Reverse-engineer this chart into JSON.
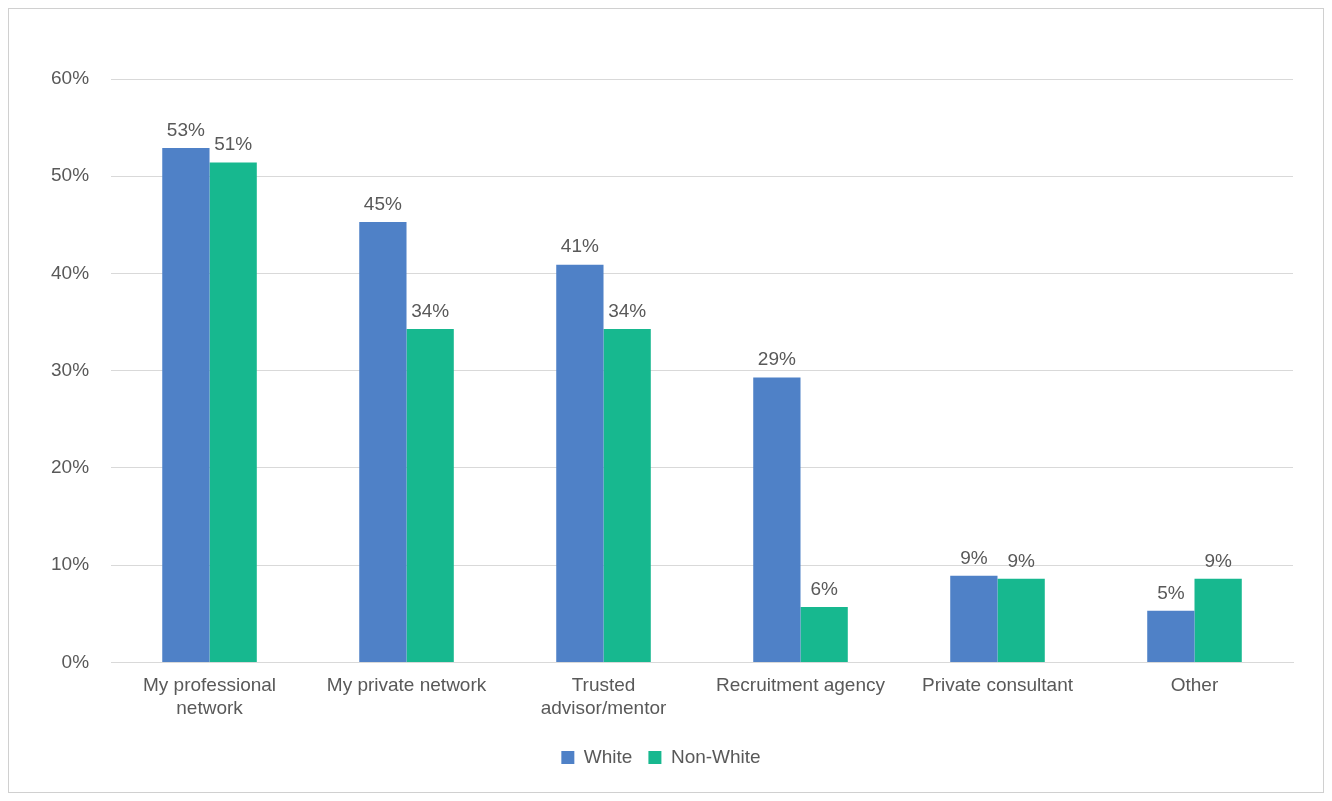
{
  "chart_data": {
    "type": "bar",
    "categories": [
      "My professional network",
      "My private network",
      "Trusted advisor/mentor",
      "Recruitment agency",
      "Private consultant",
      "Other"
    ],
    "series": [
      {
        "name": "White",
        "color": "#4f81c7",
        "values": [
          52.9,
          45.3,
          40.9,
          29.3,
          8.9,
          5.3
        ],
        "value_labels": [
          "53%",
          "45%",
          "41%",
          "29%",
          "9%",
          "5%"
        ]
      },
      {
        "name": "Non-White",
        "color": "#17b88f",
        "values": [
          51.4,
          34.3,
          34.3,
          5.7,
          8.6,
          8.6
        ],
        "value_labels": [
          "51%",
          "34%",
          "34%",
          "6%",
          "9%",
          "9%"
        ]
      }
    ],
    "ylim": [
      0,
      60
    ],
    "yticks": [
      {
        "value": 0,
        "label": "0%"
      },
      {
        "value": 10,
        "label": "10%"
      },
      {
        "value": 20,
        "label": "20%"
      },
      {
        "value": 30,
        "label": "30%"
      },
      {
        "value": 40,
        "label": "40%"
      },
      {
        "value": 50,
        "label": "50%"
      },
      {
        "value": 60,
        "label": "60%"
      }
    ],
    "grid": "y",
    "legend": "bottom"
  }
}
